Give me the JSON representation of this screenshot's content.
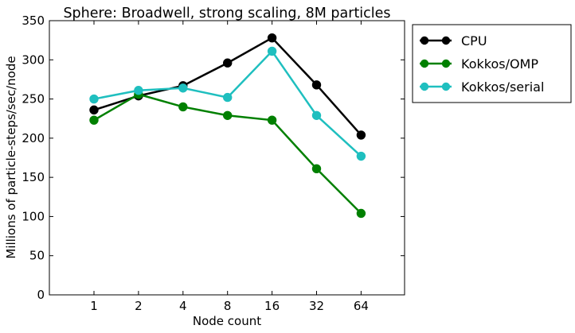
{
  "chart_data": {
    "type": "line",
    "title": "Sphere: Broadwell, strong scaling, 8M particles",
    "xlabel": "Node count",
    "ylabel": "Millions of particle-steps/sec/node",
    "categories": [
      "1",
      "2",
      "4",
      "8",
      "16",
      "32",
      "64"
    ],
    "ylim": [
      0,
      350
    ],
    "yticks": [
      0,
      50,
      100,
      150,
      200,
      250,
      300,
      350
    ],
    "grid": false,
    "legend_position": "outside-right",
    "series": [
      {
        "name": "CPU",
        "color": "#000000",
        "values": [
          236,
          254,
          267,
          296,
          328,
          268,
          204
        ]
      },
      {
        "name": "Kokkos/OMP",
        "color": "#008000",
        "values": [
          223,
          256,
          240,
          229,
          223,
          161,
          104
        ]
      },
      {
        "name": "Kokkos/serial",
        "color": "#1fbfbf",
        "values": [
          250,
          261,
          264,
          252,
          311,
          229,
          177
        ]
      }
    ]
  }
}
